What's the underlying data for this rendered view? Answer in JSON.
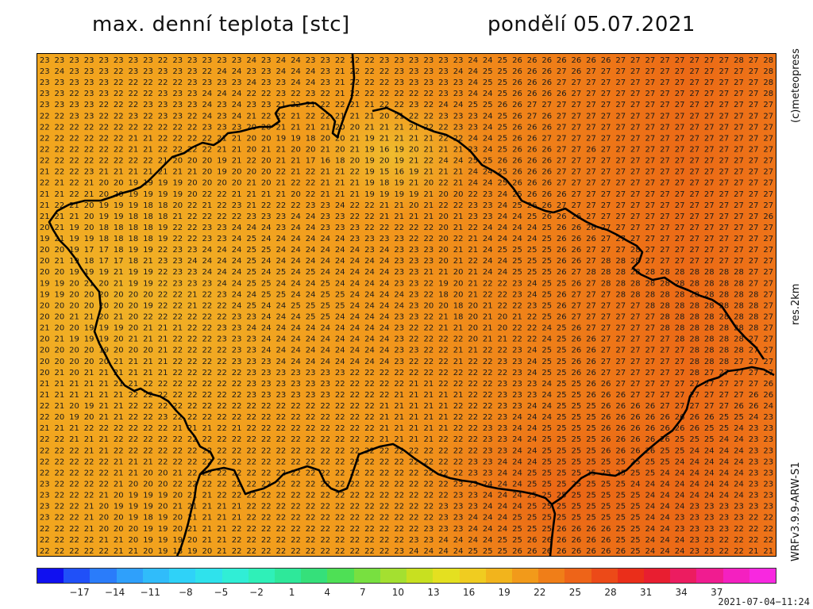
{
  "header": {
    "title": "max. denní teplota [stc]",
    "date_label": "pondělí 05.07.2021"
  },
  "side_labels": {
    "copyright": "(c)meteopress",
    "resolution": "res.2km",
    "model": "WRFv3.9.9-ARW-S1"
  },
  "colorbar": {
    "tick_labels": [
      "−17",
      "−14",
      "−11",
      "−8",
      "−5",
      "−2",
      "1",
      "4",
      "7",
      "10",
      "13",
      "16",
      "19",
      "22",
      "25",
      "28",
      "31",
      "34",
      "37"
    ],
    "colors": [
      "#1010f0",
      "#2050f8",
      "#2a7cfa",
      "#2fa0fb",
      "#30bcfa",
      "#2fd2f8",
      "#2fe2ec",
      "#30eed6",
      "#2ff0b8",
      "#2ee89a",
      "#35e07a",
      "#4ee055",
      "#78e040",
      "#a4e030",
      "#c8e020",
      "#e4e020",
      "#f0cc20",
      "#f2b41c",
      "#f29a1a",
      "#f07e18",
      "#ee6418",
      "#ec4a18",
      "#ea2e1a",
      "#e81e30",
      "#ec1c60",
      "#f01c90",
      "#f420c0",
      "#f828e0"
    ]
  },
  "timestamp": "2021-07-04−11:24",
  "map": {
    "colors": {
      "warm_orange": "#f2a020",
      "hot_orange": "#ee7818",
      "border": "#000000",
      "number": "#1a1a1a"
    },
    "grid_rows": [
      "23 23 23 23 23 23 23 23 22 23 23 23 23 23 24 23 24 24 23 23 22 22 22 23 23 23 23 23 23 24 24 25 26 26 26 26 26 26 26 27 27 27 27 27 27 27 27 28 27 28",
      "23 24 23 23 23 22 23 23 23 23 23 22 24 24 23 23 24 24 24 23 21 22 22 22 23 23 23 23 24 24 25 25 26 26 26 27 26 27 27 27 27 27 27 27 27 27 27 27 27 28",
      "23 23 23 23 23 22 22 22 22 22 23 23 23 23 24 23 23 24 24 23 21 22 22 22 23 23 23 23 23 24 25 25 26 26 26 27 27 27 27 27 27 27 27 27 27 27 27 27 27 28",
      "23 23 22 23 23 22 22 22 23 23 23 24 24 24 22 22 23 22 23 22 21 22 22 22 22 22 22 23 23 24 24 25 26 26 26 26 27 27 27 27 27 27 27 27 27 27 27 27 27 28",
      "23 23 23 23 22 22 22 23 23 23 23 24 23 24 23 23 21 22 21 22 22 21 21 22 22 23 22 24 24 25 25 26 26 27 27 27 27 27 27 27 27 27 27 27 27 27 27 27 27 27",
      "22 22 23 23 22 22 23 22 23 23 22 24 23 24 21 22 22 21 22 22 21 21 21 20 21 22 22 23 23 23 24 25 26 27 26 27 27 27 27 27 27 27 27 27 27 27 27 27 27 27",
      "22 22 22 22 22 22 22 22 22 22 22 23 23 23 20 20 21 21 21 21 20 20 21 21 21 21 22 22 23 23 24 25 26 26 26 27 27 27 27 27 27 27 27 27 27 27 27 27 27 27",
      "22 22 22 22 22 22 21 21 22 22 22 22 21 21 20 20 19 19 18 20 20 21 19 21 21 21 21 22 22 24 24 25 26 26 27 27 27 27 27 27 27 27 27 27 27 27 27 27 27 27",
      "22 22 22 22 22 22 21 21 22 22 22 22 21 21 20 21 21 20 20 21 20 21 19 16 19 20 21 21 21 23 24 25 26 26 26 27 27 26 27 27 27 27 27 27 27 27 27 27 27 27",
      "22 22 22 22 22 22 22 22 21 20 20 20 19 21 22 20 21 21 17 16 18 20 19 20 19 21 22 24 24 25 25 26 26 26 26 27 27 27 27 27 27 27 27 27 27 27 27 27 27 27",
      "21 22 22 23 21 21 21 21 21 21 21 20 19 20 20 20 22 21 22 21 21 22 19 15 16 19 21 21 21 24 24 25 26 26 26 27 27 27 27 27 27 27 27 27 27 27 27 27 27 27",
      "22 21 22 21 20 20 19 19 19 19 20 20 20 20 21 20 21 22 22 21 21 21 19 18 19 21 20 22 21 24 24 25 26 26 26 27 27 27 27 27 27 27 27 27 27 27 27 27 27 27",
      "21 21 22 21 20 20 19 19 19 19 20 22 22 21 21 21 21 20 22 21 21 21 19 19 19 19 21 20 20 22 23 24 25 26 26 26 27 27 27 27 27 27 27 27 27 27 27 27 27 27",
      "21 22 21 20 19 19 19 18 18 20 22 21 22 23 21 22 22 22 23 23 24 22 22 21 21 20 21 22 22 23 23 24 25 26 26 27 27 27 27 27 27 27 27 27 27 27 27 27 27 27",
      "21 21 21 20 19 19 18 18 18 21 22 22 22 22 23 23 23 24 24 23 23 22 22 21 21 21 21 20 21 23 23 24 24 25 26 26 26 27 27 27 27 27 27 27 27 27 27 27 27 26",
      "20 21 19 20 18 18 18 18 19 22 22 23 23 24 24 24 23 24 24 23 23 23 22 22 22 22 22 20 21 22 24 24 24 24 25 26 26 26 27 27 27 27 27 27 27 27 27 27 27 27",
      "19 21 19 19 18 18 18 18 19 22 22 23 23 24 25 24 24 24 24 24 24 23 23 23 23 22 22 20 22 21 24 24 24 24 25 26 26 26 27 27 27 27 27 27 27 27 27 27 27 27",
      "20 20 19 17 17 18 19 19 22 23 23 24 24 24 25 25 24 24 24 24 24 24 23 24 23 23 23 20 21 21 24 25 25 25 25 26 26 27 27 27 28 27 27 27 27 27 27 27 27 27",
      "20 21 19 18 17 17 18 21 23 23 24 24 24 24 25 24 24 24 24 24 24 24 24 24 23 23 23 20 21 22 24 24 25 25 25 26 26 27 28 28 28 27 27 27 27 27 27 27 27 27",
      "20 20 19 19 19 21 19 19 22 23 23 24 24 24 25 24 25 24 25 24 24 24 24 24 23 23 21 21 20 21 24 24 25 25 25 26 27 28 28 28 28 28 28 28 28 28 28 28 27 27",
      "19 19 20 21 20 21 19 19 22 23 23 23 24 24 25 25 24 24 24 25 24 24 24 24 23 23 22 19 20 21 22 22 23 24 25 25 26 27 28 28 28 28 28 28 28 28 28 28 27 27",
      "19 19 20 20 20 20 20 20 22 22 21 22 23 24 24 25 25 24 24 25 25 24 24 24 24 23 22 18 20 21 22 22 23 24 25 26 27 27 27 28 28 28 28 28 28 28 28 28 28 27",
      "20 20 20 20 20 20 20 19 22 22 21 22 22 24 25 24 24 25 25 25 25 24 24 24 24 23 20 20 18 20 21 22 22 23 25 26 27 27 27 27 27 28 28 28 28 28 28 28 28 27",
      "20 20 21 21 20 21 20 22 22 22 22 22 22 23 23 24 24 24 25 25 24 24 24 24 23 23 22 21 18 20 21 20 21 22 25 26 27 27 27 27 27 27 28 28 28 28 28 28 28 27",
      "21 20 20 19 19 19 20 21 21 21 22 22 23 23 24 24 24 24 24 24 24 24 24 24 23 22 22 21 21 20 21 20 22 22 24 25 26 27 27 27 27 27 28 28 28 28 28 28 28 27",
      "20 21 19 19 19 20 21 21 21 22 22 22 23 23 23 24 24 24 24 24 24 24 24 24 23 22 22 22 22 20 21 21 22 22 24 25 26 26 27 27 27 27 27 28 28 28 28 28 27 27",
      "20 20 20 20 19 20 20 20 21 22 22 22 22 23 23 24 24 24 24 24 24 24 24 24 23 23 22 22 21 21 22 22 23 24 25 25 26 26 27 27 27 27 27 27 28 28 28 28 27 27",
      "20 20 20 20 20 21 21 21 21 22 22 22 22 23 23 23 24 24 24 24 24 24 24 24 23 22 22 22 21 22 22 23 23 24 25 25 26 26 27 27 27 27 27 27 28 28 28 27 27 27",
      "20 21 20 21 21 21 21 21 21 22 22 22 22 22 23 23 23 23 23 23 23 22 22 22 22 22 22 22 22 22 22 22 23 24 25 25 26 26 27 27 27 27 27 27 28 27 27 27 27 27",
      "21 21 21 21 21 21 21 22 22 22 22 22 22 22 23 23 23 23 23 23 22 22 22 22 22 21 21 22 22 22 22 23 23 23 24 25 25 26 26 27 27 27 27 27 27 27 27 27 27 26",
      "21 21 21 21 21 21 22 22 22 22 22 22 22 22 23 23 23 23 23 23 22 22 22 22 21 21 21 21 21 22 22 23 23 23 24 25 25 26 26 26 27 27 27 27 27 27 27 27 26 26",
      "22 21 20 19 21 21 22 22 22 22 22 22 22 22 22 22 22 22 22 22 22 22 22 21 21 21 21 21 22 22 22 23 23 24 24 25 25 25 26 26 26 26 27 27 27 27 27 26 26 24",
      "22 20 19 20 21 21 22 22 23 22 22 22 22 22 22 22 22 22 22 22 22 22 22 21 21 21 21 21 22 22 22 23 24 24 24 25 25 25 26 26 26 26 26 26 26 26 25 25 24 23",
      "21 21 21 22 22 22 22 22 22 21 21 21 22 21 22 22 22 22 22 22 22 22 22 21 21 21 21 21 22 22 23 23 24 24 25 25 25 25 26 26 26 26 26 26 26 25 25 24 23 23",
      "22 22 21 21 21 22 22 22 22 22 22 22 22 22 22 22 22 22 22 22 22 22 22 21 21 21 21 22 22 22 23 23 24 24 25 25 25 25 26 26 26 26 26 25 25 25 24 24 23 23",
      "22 22 22 21 21 22 22 22 22 22 22 22 22 22 22 22 22 22 22 22 22 22 22 22 22 22 22 22 22 22 23 23 24 24 25 25 25 25 26 26 26 26 25 25 24 24 24 24 23 23",
      "22 22 22 22 22 21 21 21 22 22 22 22 22 22 22 22 22 22 22 22 22 22 22 22 22 22 22 22 22 23 23 24 24 24 25 25 25 25 25 25 25 25 25 24 24 24 24 24 23 23",
      "22 22 22 22 22 21 21 20 20 21 22 22 22 22 22 22 22 22 22 22 22 22 22 22 22 22 22 22 22 23 23 24 24 25 25 25 25 25 25 25 25 25 24 24 24 24 24 24 23 23",
      "23 22 22 22 22 21 20 20 20 22 22 22 22 22 22 22 22 22 22 22 22 22 22 22 22 22 22 22 23 23 24 24 24 25 25 25 25 25 25 25 24 24 24 24 24 24 24 24 23 23",
      "23 22 22 22 21 20 19 19 19 20 21 21 22 22 22 22 22 22 22 22 22 22 22 22 22 22 22 22 23 23 24 24 24 25 25 25 25 25 25 25 25 24 24 24 24 24 24 24 23 23",
      "23 22 22 21 20 19 19 19 20 21 21 21 21 21 22 22 22 22 22 22 22 22 22 22 22 22 22 23 23 23 24 24 24 25 25 25 25 25 25 25 25 24 24 24 23 23 23 23 23 23",
      "23 22 22 21 20 20 19 18 19 20 21 21 21 21 22 22 22 22 22 22 22 22 22 22 22 22 22 23 23 24 24 24 25 25 25 25 25 25 25 25 25 24 24 23 23 23 23 23 22 22",
      "22 22 22 21 20 20 20 19 19 20 21 21 21 22 22 22 22 22 22 22 22 22 22 22 22 22 23 23 23 24 24 24 25 25 25 26 26 26 26 25 25 24 24 23 23 23 23 22 22 22",
      "22 22 22 22 21 21 20 19 19 19 20 21 21 22 22 22 22 22 22 22 22 22 22 22 22 23 23 24 24 24 24 25 25 26 26 26 26 26 26 25 25 24 24 24 23 23 22 22 22 22",
      "22 22 22 22 22 21 21 20 19 18 19 20 21 22 22 22 22 22 22 22 22 22 22 22 23 24 24 24 24 25 25 25 26 26 26 26 26 26 26 26 25 24 24 24 23 23 22 22 21 21"
    ]
  }
}
